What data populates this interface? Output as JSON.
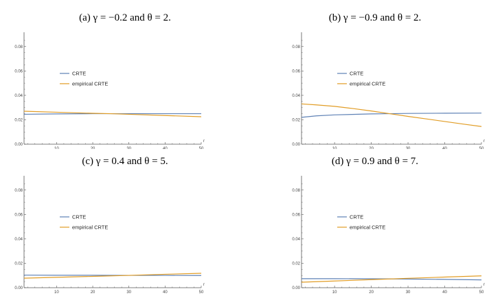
{
  "colors": {
    "crte": "#5e81b5",
    "empirical": "#e19c24",
    "axis": "#555555"
  },
  "chart_data": [
    {
      "type": "line",
      "title": "(a) γ = −0.2 and θ = 2.",
      "xlabel": "r",
      "ylabel": "",
      "xlim": [
        1,
        50
      ],
      "ylim": [
        0,
        0.09
      ],
      "xticks": [
        "10",
        "20",
        "30",
        "40",
        "50"
      ],
      "yticks": [
        "0.00",
        "0.02",
        "0.04",
        "0.06",
        "0.08"
      ],
      "legend": "upper-left",
      "grid": false,
      "series": [
        {
          "name": "CRTE",
          "color": "#5e81b5",
          "x": [
            1,
            10,
            20,
            25,
            30,
            40,
            50
          ],
          "values": [
            0.0245,
            0.0248,
            0.025,
            0.025,
            0.025,
            0.025,
            0.025
          ]
        },
        {
          "name": "empirical CRTE",
          "color": "#e19c24",
          "x": [
            1,
            10,
            20,
            25,
            30,
            40,
            50
          ],
          "values": [
            0.027,
            0.0262,
            0.0253,
            0.025,
            0.0245,
            0.0235,
            0.0225
          ]
        }
      ]
    },
    {
      "type": "line",
      "title": "(b) γ = −0.9 and θ = 2.",
      "xlabel": "r",
      "ylabel": "",
      "xlim": [
        1,
        50
      ],
      "ylim": [
        0,
        0.09
      ],
      "xticks": [
        "10",
        "20",
        "30",
        "40",
        "50"
      ],
      "yticks": [
        "0.00",
        "0.02",
        "0.04",
        "0.06",
        "0.08"
      ],
      "legend": "upper-left",
      "grid": false,
      "series": [
        {
          "name": "CRTE",
          "color": "#5e81b5",
          "x": [
            1,
            5,
            10,
            20,
            25,
            30,
            40,
            50
          ],
          "values": [
            0.022,
            0.0232,
            0.024,
            0.0248,
            0.025,
            0.0252,
            0.0254,
            0.0255
          ]
        },
        {
          "name": "empirical CRTE",
          "color": "#e19c24",
          "x": [
            1,
            5,
            10,
            15,
            20,
            25,
            30,
            35,
            40,
            45,
            50
          ],
          "values": [
            0.033,
            0.0322,
            0.031,
            0.0292,
            0.0272,
            0.025,
            0.0228,
            0.0207,
            0.0186,
            0.0165,
            0.0145
          ]
        }
      ]
    },
    {
      "type": "line",
      "title": "(c) γ = 0.4 and θ = 5.",
      "xlabel": "r",
      "ylabel": "",
      "xlim": [
        1,
        50
      ],
      "ylim": [
        0,
        0.09
      ],
      "xticks": [
        "10",
        "20",
        "30",
        "40",
        "50"
      ],
      "yticks": [
        "0.00",
        "0.02",
        "0.04",
        "0.06",
        "0.08"
      ],
      "legend": "upper-left",
      "grid": false,
      "series": [
        {
          "name": "CRTE",
          "color": "#5e81b5",
          "x": [
            1,
            10,
            20,
            30,
            40,
            50
          ],
          "values": [
            0.0103,
            0.0102,
            0.0102,
            0.0101,
            0.0101,
            0.01
          ]
        },
        {
          "name": "empirical CRTE",
          "color": "#e19c24",
          "x": [
            1,
            10,
            20,
            30,
            40,
            50
          ],
          "values": [
            0.0078,
            0.0085,
            0.0093,
            0.0101,
            0.011,
            0.0118
          ]
        }
      ]
    },
    {
      "type": "line",
      "title": "(d) γ = 0.9 and θ = 7.",
      "xlabel": "r",
      "ylabel": "",
      "xlim": [
        1,
        50
      ],
      "ylim": [
        0,
        0.09
      ],
      "xticks": [
        "10",
        "20",
        "30",
        "40",
        "50"
      ],
      "yticks": [
        "0.00",
        "0.02",
        "0.04",
        "0.06",
        "0.08"
      ],
      "legend": "upper-left",
      "grid": false,
      "series": [
        {
          "name": "CRTE",
          "color": "#5e81b5",
          "x": [
            1,
            10,
            20,
            30,
            40,
            50
          ],
          "values": [
            0.0074,
            0.0074,
            0.0073,
            0.0071,
            0.0068,
            0.0064
          ]
        },
        {
          "name": "empirical CRTE",
          "color": "#e19c24",
          "x": [
            1,
            10,
            20,
            30,
            40,
            50
          ],
          "values": [
            0.0045,
            0.0055,
            0.0066,
            0.0077,
            0.0087,
            0.0097
          ]
        }
      ]
    }
  ]
}
